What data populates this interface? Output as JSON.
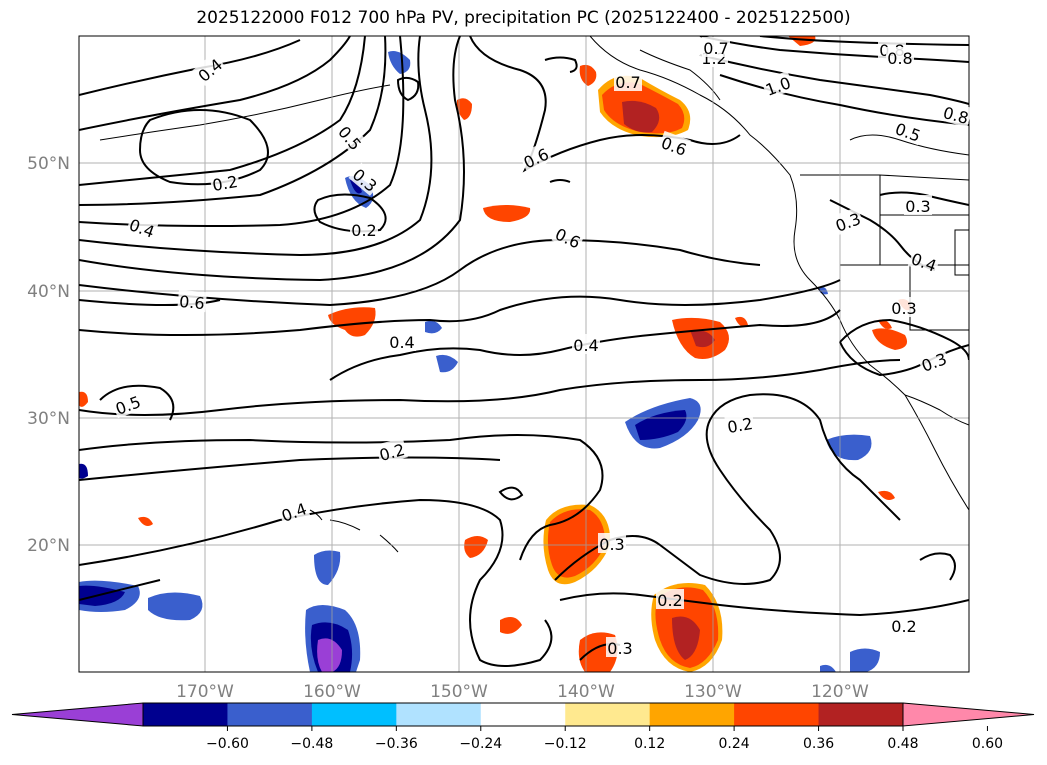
{
  "title": "2025122000 F012 700 hPa PV, precipitation PC (2025122400 - 2025122500)",
  "lat_labels": [
    "50°N",
    "40°N",
    "30°N",
    "20°N"
  ],
  "lon_labels": [
    "170°W",
    "160°W",
    "150°W",
    "140°W",
    "130°W",
    "120°W"
  ],
  "contour_labels": [
    "0.4",
    "1.2",
    "0.7",
    "0.8",
    "0.7",
    "1.0",
    "0.8",
    "0.8",
    "0.5",
    "0.5",
    "0.6",
    "0.2",
    "0.3",
    "0.6",
    "0.3",
    "0.2",
    "0.4",
    "0.6",
    "0.3",
    "0.4",
    "0.6",
    "0.3",
    "0.4",
    "0.4",
    "0.5",
    "0.3",
    "0.2",
    "0.2",
    "0.4",
    "0.3",
    "0.2",
    "0.3",
    "0.2"
  ],
  "colorbar": {
    "tick_labels": [
      "−0.60",
      "−0.48",
      "−0.36",
      "−0.24",
      "−0.12",
      "0.12",
      "0.24",
      "0.36",
      "0.48",
      "0.60"
    ],
    "colors": [
      "#9a3fd6",
      "#00008f",
      "#3a5fcd",
      "#00bfff",
      "#b0e2ff",
      "#ffffff",
      "#ffe98f",
      "#ffa500",
      "#ff4500",
      "#b22222",
      "#ff88aa"
    ]
  }
}
